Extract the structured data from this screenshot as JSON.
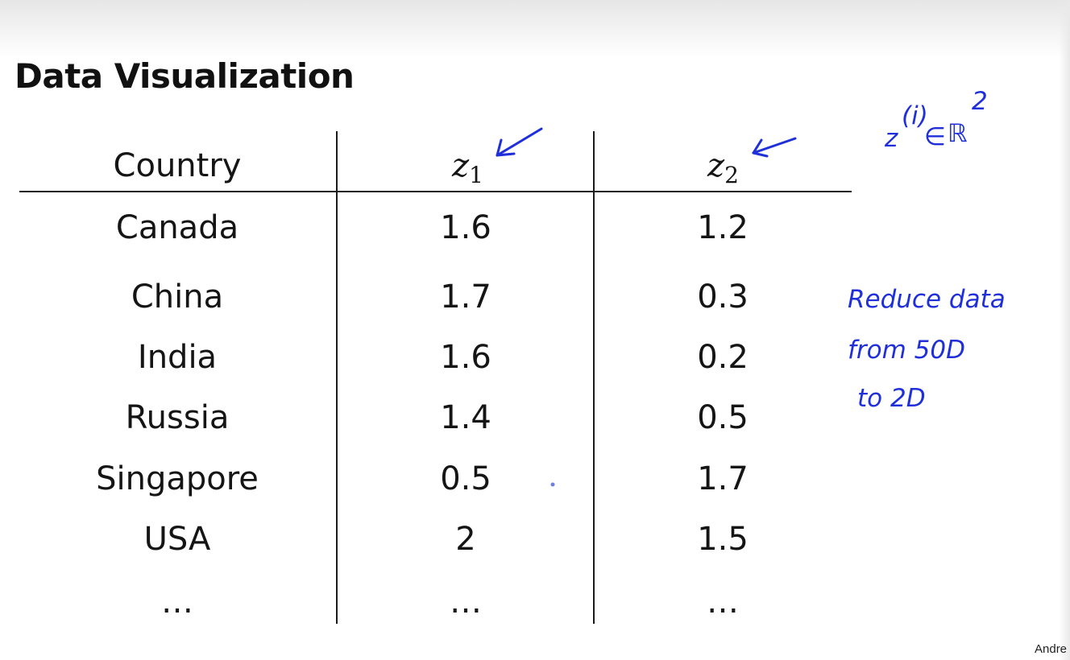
{
  "slide": {
    "title": "Data Visualization",
    "footer": "Andre"
  },
  "table": {
    "header": {
      "country": "Country",
      "z1_symbol": "z",
      "z1_sub": "1",
      "z2_symbol": "z",
      "z2_sub": "2"
    },
    "rows": [
      {
        "country": "Canada",
        "z1": "1.6",
        "z2": "1.2"
      },
      {
        "country": "China",
        "z1": "1.7",
        "z2": "0.3"
      },
      {
        "country": "India",
        "z1": "1.6",
        "z2": "0.2"
      },
      {
        "country": "Russia",
        "z1": "1.4",
        "z2": "0.5"
      },
      {
        "country": "Singapore",
        "z1": "0.5",
        "z2": "1.7"
      },
      {
        "country": "USA",
        "z1": "2",
        "z2": "1.5"
      },
      {
        "country": "…",
        "z1": "…",
        "z2": "…"
      }
    ]
  },
  "annotations": {
    "notation": {
      "base": "z",
      "superscript": "(i)",
      "relation": "∈",
      "set": "ℝ",
      "power": "2"
    },
    "note_line1": "Reduce data",
    "note_line2": "from  50D",
    "note_line3": "to  2D",
    "ink_color": "#1f2fd9"
  }
}
